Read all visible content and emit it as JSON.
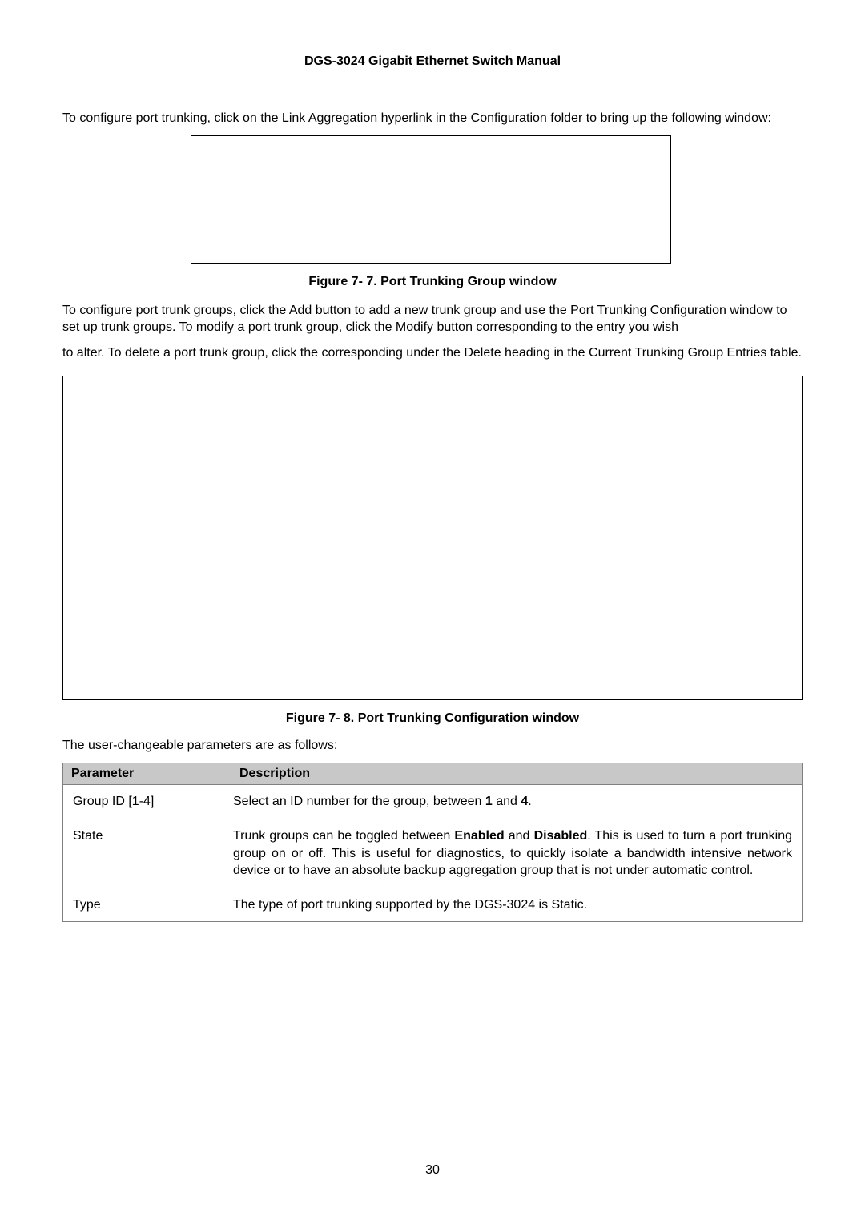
{
  "header": {
    "title": "DGS-3024 Gigabit Ethernet Switch Manual"
  },
  "intro_text": "To configure port trunking, click on the Link Aggregation hyperlink in the Configuration folder to bring up the following window:",
  "figure1": {
    "caption": "Figure 7- 7. Port Trunking Group window"
  },
  "mid_text_1": "To configure port trunk groups, click the Add button to add a new trunk group and use the Port Trunking Configuration window to set up trunk groups. To modify a port trunk group, click the Modify button corresponding to the entry you wish",
  "mid_text_2a": "to alter. To delete a port trunk group, click the corresponding ",
  "mid_text_2b": " under the Delete heading in the Current Trunking Group Entries table.",
  "figure2": {
    "caption": "Figure 7- 8. Port Trunking Configuration window"
  },
  "params_intro": "The user-changeable parameters are as follows:",
  "table": {
    "header_param": "Parameter",
    "header_desc": "Description",
    "rows": [
      {
        "param": "Group ID [1-4]",
        "desc_pre": "Select an ID number for the group, between ",
        "bold1": "1",
        "mid": " and ",
        "bold2": "4",
        "desc_post": "."
      },
      {
        "param": "State",
        "desc_pre": "Trunk groups can be toggled between ",
        "bold1": "Enabled",
        "mid": " and ",
        "bold2": "Disabled",
        "desc_post": ". This is used to turn a port trunking group on or off. This is useful for diagnostics, to quickly isolate a bandwidth intensive network device or to have an absolute backup aggregation group that is not under automatic control."
      },
      {
        "param": "Type",
        "desc_plain": "The type of port trunking supported by the DGS-3024 is Static."
      }
    ]
  },
  "page_number": "30",
  "colors": {
    "table_header_bg": "#c8c8c8",
    "border": "#808080",
    "text": "#000000",
    "bg": "#ffffff"
  }
}
